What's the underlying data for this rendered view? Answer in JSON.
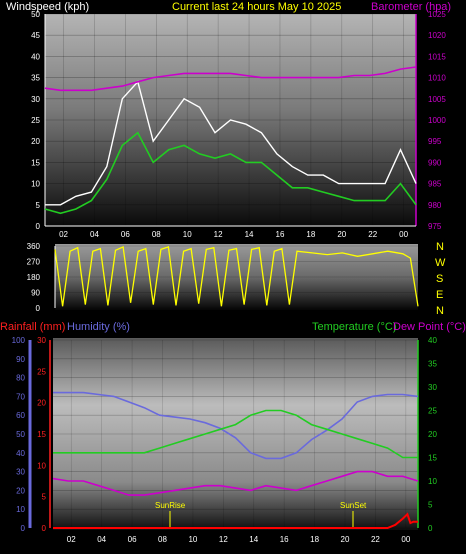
{
  "header": {
    "windspeed_label": "Windspeed (kph)",
    "current_label": "Current last 24 hours May 10 2025",
    "barometer_label": "Barometer (hpa)"
  },
  "bottom_header": {
    "rainfall_label": "Rainfall (mm)",
    "humidity_label": "Humidity (%)",
    "temperature_label": "Temperature (°C)",
    "dewpoint_label": "Dew Point (°C)"
  },
  "direction_labels": [
    "N",
    "W",
    "S",
    "E",
    "N"
  ],
  "sunrise_label": "SunRise",
  "sunset_label": "SunSet",
  "colors": {
    "windspeed": "#ffffff",
    "gust_avg": "#22cc22",
    "barometer": "#cc00cc",
    "wind_dir": "#ffff00",
    "rain_axis": "#ff2020",
    "humidity": "#6a6adc",
    "temperature": "#22cc22",
    "dewpoint": "#cc00cc",
    "title": "#ffff00"
  },
  "chart_data": [
    {
      "type": "line",
      "name": "wind_baro",
      "x_ticks": [
        "02",
        "04",
        "06",
        "08",
        "10",
        "12",
        "14",
        "16",
        "18",
        "20",
        "22",
        "00"
      ],
      "wind_yticks": [
        0,
        5,
        10,
        15,
        20,
        25,
        30,
        35,
        40,
        45,
        50
      ],
      "baro_yticks": [
        975,
        980,
        985,
        990,
        995,
        1000,
        1005,
        1010,
        1015,
        1020,
        1025
      ],
      "xlim": [
        0,
        24
      ],
      "wind_ylim": [
        0,
        50
      ],
      "baro_ylim": [
        975,
        1025
      ],
      "series": [
        {
          "name": "Windspeed (kph)",
          "x": [
            0,
            1,
            2,
            3,
            4,
            5,
            6,
            7,
            8,
            9,
            10,
            11,
            12,
            13,
            14,
            15,
            16,
            17,
            18,
            19,
            20,
            21,
            22,
            23,
            24
          ],
          "values": [
            5,
            5,
            7,
            8,
            14,
            30,
            34,
            20,
            25,
            30,
            28,
            22,
            25,
            24,
            22,
            17,
            14,
            12,
            12,
            10,
            10,
            10,
            10,
            18,
            10
          ]
        },
        {
          "name": "",
          "x": [
            0,
            1,
            2,
            3,
            4,
            5,
            6,
            7,
            8,
            9,
            10,
            11,
            12,
            13,
            14,
            15,
            16,
            17,
            18,
            19,
            20,
            21,
            22,
            23,
            24
          ],
          "values": [
            4,
            3,
            4,
            6,
            11,
            19,
            22,
            15,
            18,
            19,
            17,
            16,
            17,
            15,
            15,
            12,
            9,
            9,
            8,
            7,
            6,
            6,
            6,
            10,
            5
          ]
        },
        {
          "name": "Barometer (hpa)",
          "x": [
            0,
            1,
            2,
            3,
            4,
            5,
            6,
            7,
            8,
            9,
            10,
            11,
            12,
            13,
            14,
            15,
            16,
            17,
            18,
            19,
            20,
            21,
            22,
            23,
            24
          ],
          "values": [
            1007.5,
            1007,
            1007,
            1007,
            1007.5,
            1008,
            1009,
            1010,
            1010.5,
            1011,
            1011,
            1011,
            1011,
            1010.5,
            1010,
            1010,
            1010,
            1010,
            1010,
            1010,
            1010.5,
            1010.5,
            1011,
            1012,
            1012.5
          ]
        }
      ]
    },
    {
      "type": "line",
      "name": "wind_direction",
      "yticks": [
        0,
        90,
        180,
        270,
        360
      ],
      "ylim": [
        0,
        360
      ],
      "series": [
        {
          "name": "Wind direction",
          "x": [
            0,
            0.5,
            1,
            1.5,
            2,
            2.5,
            3,
            3.5,
            4,
            4.5,
            5,
            5.5,
            6,
            6.5,
            7,
            7.5,
            8,
            8.5,
            9,
            9.5,
            10,
            10.5,
            11,
            11.5,
            12,
            12.5,
            13,
            13.5,
            14,
            14.5,
            15,
            15.5,
            16,
            17,
            18,
            19,
            20,
            21,
            22,
            23,
            23.5,
            24
          ],
          "values": [
            340,
            10,
            330,
            350,
            20,
            330,
            345,
            15,
            335,
            355,
            30,
            330,
            345,
            20,
            340,
            355,
            15,
            330,
            345,
            25,
            340,
            350,
            10,
            335,
            345,
            20,
            340,
            350,
            15,
            330,
            345,
            20,
            330,
            320,
            310,
            320,
            300,
            315,
            330,
            315,
            290,
            10
          ]
        }
      ]
    },
    {
      "type": "line",
      "name": "rain_humidity_temp",
      "x_ticks": [
        "02",
        "04",
        "06",
        "08",
        "10",
        "12",
        "14",
        "16",
        "18",
        "20",
        "22",
        "00"
      ],
      "rain_yticks": [
        0,
        5,
        10,
        15,
        20,
        25,
        30
      ],
      "humidity_yticks": [
        0,
        10,
        20,
        30,
        40,
        50,
        60,
        70,
        80,
        90,
        100
      ],
      "temp_yticks": [
        0,
        5,
        10,
        15,
        20,
        25,
        30,
        35,
        40
      ],
      "xlim": [
        0,
        24
      ],
      "series": [
        {
          "name": "Humidity (%)",
          "x": [
            0,
            1,
            2,
            3,
            4,
            5,
            6,
            7,
            8,
            9,
            10,
            11,
            12,
            13,
            14,
            15,
            16,
            17,
            18,
            19,
            20,
            21,
            22,
            23,
            24
          ],
          "values": [
            72,
            72,
            72,
            71,
            70,
            67,
            64,
            60,
            59,
            58,
            56,
            53,
            48,
            40,
            37,
            37,
            40,
            47,
            52,
            58,
            67,
            70,
            71,
            71,
            70
          ]
        },
        {
          "name": "Temperature (°C)",
          "x": [
            0,
            1,
            2,
            3,
            4,
            5,
            6,
            7,
            8,
            9,
            10,
            11,
            12,
            13,
            14,
            15,
            16,
            17,
            18,
            19,
            20,
            21,
            22,
            23,
            24
          ],
          "values": [
            16,
            16,
            16,
            16,
            16,
            16,
            16,
            17,
            18,
            19,
            20,
            21,
            22,
            24,
            25,
            25,
            24,
            22,
            21,
            20,
            19,
            18,
            17,
            15,
            15
          ]
        },
        {
          "name": "Dew Point (°C)",
          "x": [
            0,
            1,
            2,
            3,
            4,
            5,
            6,
            7,
            8,
            9,
            10,
            11,
            12,
            13,
            14,
            15,
            16,
            17,
            18,
            19,
            20,
            21,
            22,
            23,
            24
          ],
          "values": [
            10.5,
            10,
            10,
            9,
            8,
            7,
            7,
            7.5,
            8,
            8.5,
            9,
            9,
            8.5,
            8,
            9,
            8.5,
            8,
            9,
            10,
            11,
            12,
            12,
            11,
            11,
            10
          ]
        },
        {
          "name": "Rainfall (mm)",
          "x": [
            0,
            2,
            4,
            6,
            8,
            10,
            12,
            14,
            16,
            18,
            20,
            21,
            22,
            22.5,
            23,
            23.3,
            23.5,
            23.7,
            24
          ],
          "values": [
            0,
            0,
            0,
            0,
            0,
            0,
            0,
            0,
            0,
            0,
            0,
            0,
            0,
            0.5,
            1.5,
            2.2,
            0.8,
            1.0,
            1.0
          ]
        }
      ]
    }
  ]
}
